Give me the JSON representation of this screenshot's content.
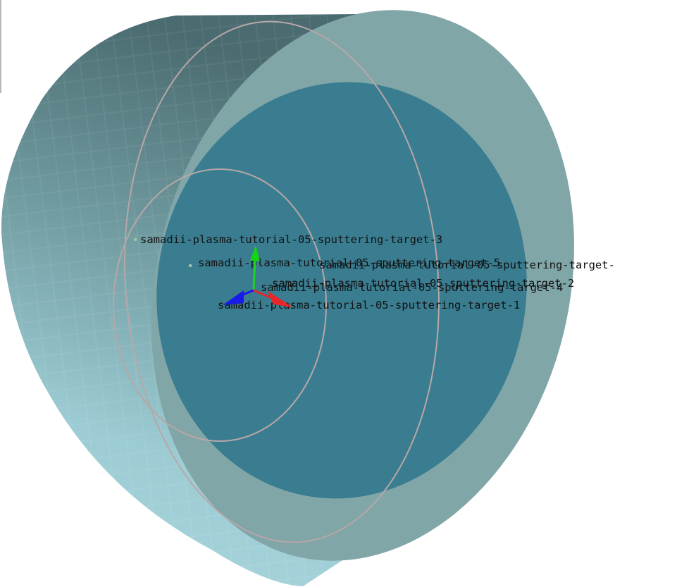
{
  "viewport": {
    "background": "#ffffff",
    "labels": [
      "samadii-plasma-tutorial-05-sputtering-target-3",
      "samadii-plasma-tutorial-05-sputtering-target-5",
      "samadii-plasma-tutorial-05-sputtering-target-",
      "samadii-plasma-tutorial-05-sputtering-target-2",
      "samadii-plasma-tutorial-05-sputtering-target-4",
      "samadii-plasma-tutorial-05-sputtering-target-1"
    ]
  },
  "colors": {
    "shell_light": "#a8d4dc",
    "shell_dark": "#4d6f74",
    "face": "#3a7d90",
    "rim": "#80a6a8",
    "axis_x": "#e8262a",
    "axis_y": "#16d116",
    "axis_z": "#1a1ae8"
  },
  "icons": {
    "triad": "xyz-axis-triad-icon"
  }
}
